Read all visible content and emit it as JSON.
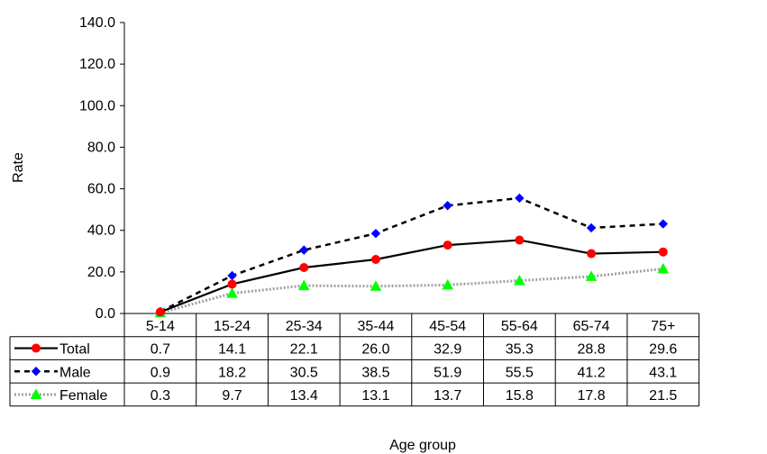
{
  "chart_data": {
    "type": "line",
    "xlabel": "Age group",
    "ylabel": "Rate",
    "ylim": [
      0,
      140
    ],
    "yticks": [
      "0.0",
      "20.0",
      "40.0",
      "60.0",
      "80.0",
      "100.0",
      "120.0",
      "140.0"
    ],
    "categories": [
      "5-14",
      "15-24",
      "25-34",
      "35-44",
      "45-54",
      "55-64",
      "65-74",
      "75+"
    ],
    "grid": false,
    "legend": "data table below plot",
    "series": [
      {
        "name": "Total",
        "values": [
          0.7,
          14.1,
          22.1,
          26.0,
          32.9,
          35.3,
          28.8,
          29.6
        ],
        "labels": [
          "0.7",
          "14.1",
          "22.1",
          "26.0",
          "32.9",
          "35.3",
          "28.8",
          "29.6"
        ],
        "color": "#000000",
        "marker": "circle",
        "marker_color": "#ff0000",
        "line_style": "solid"
      },
      {
        "name": "Male",
        "values": [
          0.9,
          18.2,
          30.5,
          38.5,
          51.9,
          55.5,
          41.2,
          43.1
        ],
        "labels": [
          "0.9",
          "18.2",
          "30.5",
          "38.5",
          "51.9",
          "55.5",
          "41.2",
          "43.1"
        ],
        "color": "#000000",
        "marker": "diamond",
        "marker_color": "#0000ff",
        "line_style": "dashed"
      },
      {
        "name": "Female",
        "values": [
          0.3,
          9.7,
          13.4,
          13.1,
          13.7,
          15.8,
          17.8,
          21.5
        ],
        "labels": [
          "0.3",
          "9.7",
          "13.4",
          "13.1",
          "13.7",
          "15.8",
          "17.8",
          "21.5"
        ],
        "color": "#a0a0a0",
        "marker": "triangle",
        "marker_color": "#00ff00",
        "line_style": "dotted"
      }
    ]
  }
}
